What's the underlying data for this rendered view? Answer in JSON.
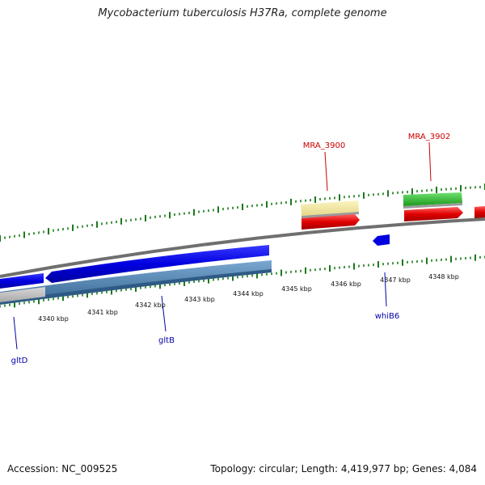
{
  "title": "Mycobacterium tuberculosis H37Ra, complete genome",
  "footer": {
    "accession": "Accession: NC_009525",
    "summary": "Topology: circular; Length: 4,419,977 bp; Genes: 4,084"
  },
  "colors": {
    "tick": "#1a7a1a",
    "backbone": "#7a7a7a",
    "forward_label": "#cc0000",
    "reverse_label": "#0000aa",
    "forward_cds": "#e00000",
    "forward_gene": "#f0e6a0",
    "forward_green": "#22bb22",
    "reverse_cds": "#0000dd",
    "reverse_gene": "#4a80b0"
  },
  "scale": {
    "unit": "kbp",
    "labels": [
      "4340 kbp",
      "4341 kbp",
      "4342 kbp",
      "4343 kbp",
      "4344 kbp",
      "4345 kbp",
      "4346 kbp",
      "4347 kbp",
      "4348 kbp"
    ]
  },
  "gene_labels": {
    "mra3900": "MRA_3900",
    "mra3902": "MRA_3902",
    "gltd": "gltD",
    "gltb": "gltB",
    "whib6": "whiB6"
  }
}
